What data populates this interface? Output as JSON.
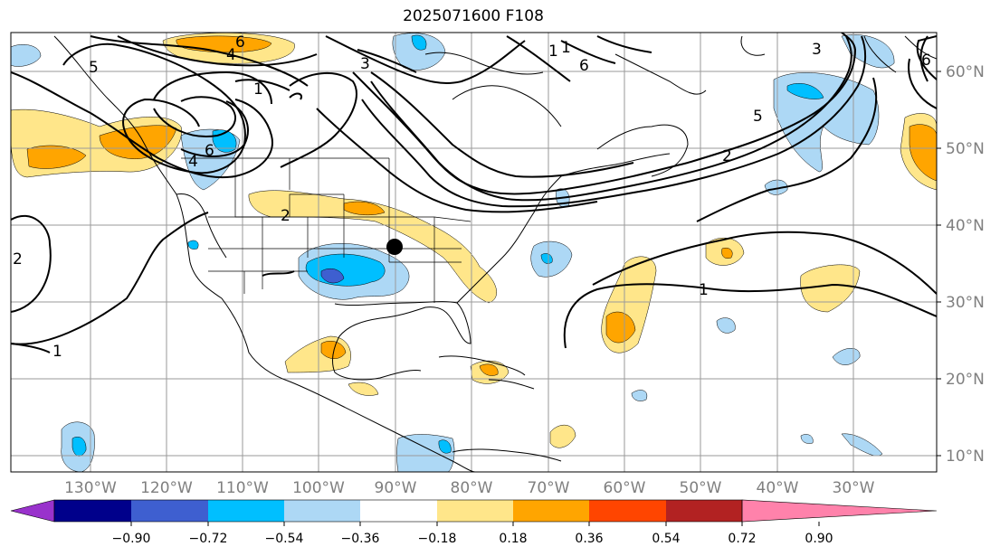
{
  "title": "2025071600 F108",
  "lat_labels": [
    "60°N",
    "50°N",
    "40°N",
    "30°N",
    "20°N",
    "10°N"
  ],
  "lon_labels": [
    "130°W",
    "120°W",
    "110°W",
    "100°W",
    "90°W",
    "80°W",
    "70°W",
    "60°W",
    "50°W",
    "40°W",
    "30°W"
  ],
  "colorbar": {
    "colors": [
      "#9932cc",
      "#00008b",
      "#3e5fd0",
      "#00bfff",
      "#add8f5",
      "#ffffff",
      "#ffe68a",
      "#ffa500",
      "#ff4500",
      "#b22222",
      "#ff82ab"
    ],
    "tick_labels": [
      "−0.90",
      "−0.72",
      "−0.54",
      "−0.36",
      "−0.18",
      "0.18",
      "0.36",
      "0.54",
      "0.72",
      "0.90"
    ]
  },
  "contour_labels": [
    "6",
    "4",
    "5",
    "1",
    "6",
    "4",
    "3",
    "6",
    "2",
    "1",
    "5",
    "3",
    "1",
    "2",
    "6",
    "2",
    "1",
    "1"
  ],
  "marker": "black-dot"
}
